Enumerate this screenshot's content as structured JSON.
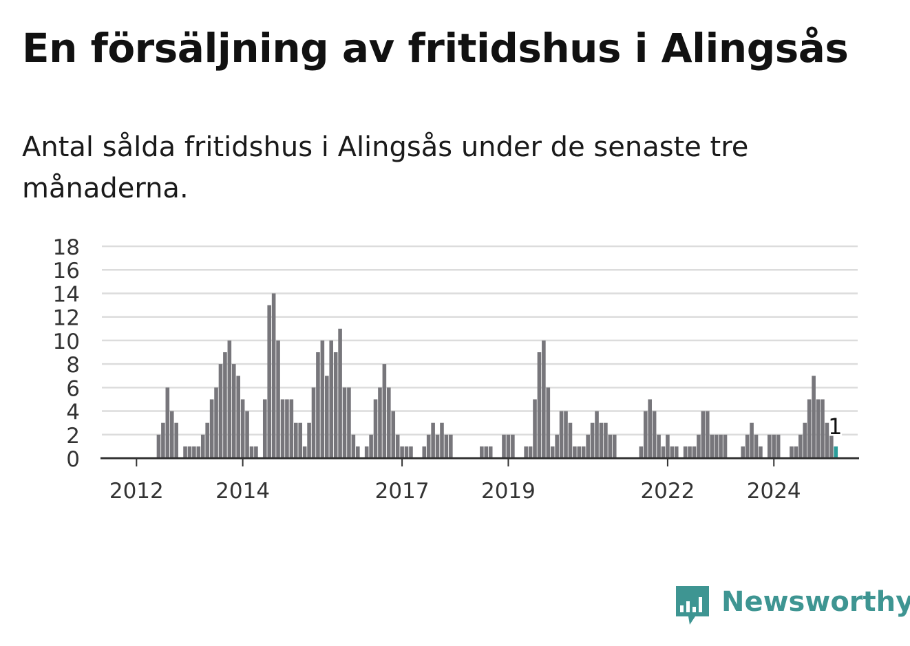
{
  "title": "En försäljning av fritidshus i Alingsås",
  "subtitle": "Antal sålda fritidshus i Alingsås under de senaste tre månaderna.",
  "brand": {
    "name": "Newsworthy",
    "color": "#3e9592",
    "icon": "newsworthy-logo-icon"
  },
  "colors": {
    "bar": "#77767b",
    "highlight": "#2a9d9a",
    "grid": "#dcdcdc",
    "axis": "#333333"
  },
  "chart_data": {
    "type": "bar",
    "xlabel": "",
    "ylabel": "",
    "ylim": [
      0,
      18
    ],
    "yticks": [
      0,
      2,
      4,
      6,
      8,
      10,
      12,
      14,
      16,
      18
    ],
    "xticks": [
      {
        "label": "2012",
        "index": 7
      },
      {
        "label": "2014",
        "index": 31
      },
      {
        "label": "2017",
        "index": 67
      },
      {
        "label": "2019",
        "index": 91
      },
      {
        "label": "2022",
        "index": 127
      },
      {
        "label": "2024",
        "index": 151
      }
    ],
    "grid": true,
    "values": [
      0,
      0,
      0,
      0,
      0,
      0,
      0,
      0,
      0,
      0,
      0,
      0,
      2,
      3,
      6,
      4,
      3,
      0,
      1,
      1,
      1,
      1,
      2,
      3,
      5,
      6,
      8,
      9,
      10,
      8,
      7,
      5,
      4,
      1,
      1,
      0,
      5,
      13,
      14,
      10,
      5,
      5,
      5,
      3,
      3,
      1,
      3,
      6,
      9,
      10,
      7,
      10,
      9,
      11,
      6,
      6,
      2,
      1,
      0,
      1,
      2,
      5,
      6,
      8,
      6,
      4,
      2,
      1,
      1,
      1,
      0,
      0,
      1,
      2,
      3,
      2,
      3,
      2,
      2,
      0,
      0,
      0,
      0,
      0,
      0,
      1,
      1,
      1,
      0,
      0,
      2,
      2,
      2,
      0,
      0,
      1,
      1,
      5,
      9,
      10,
      6,
      1,
      2,
      4,
      4,
      3,
      1,
      1,
      1,
      2,
      3,
      4,
      3,
      3,
      2,
      2,
      0,
      0,
      0,
      0,
      0,
      1,
      4,
      5,
      4,
      2,
      1,
      2,
      1,
      1,
      0,
      1,
      1,
      1,
      2,
      4,
      4,
      2,
      2,
      2,
      2,
      0,
      0,
      0,
      1,
      2,
      3,
      2,
      1,
      0,
      2,
      2,
      2,
      0,
      0,
      1,
      1,
      2,
      3,
      5,
      7,
      5,
      5,
      3,
      2,
      1
    ],
    "highlight_last": true,
    "last_label": "1"
  }
}
